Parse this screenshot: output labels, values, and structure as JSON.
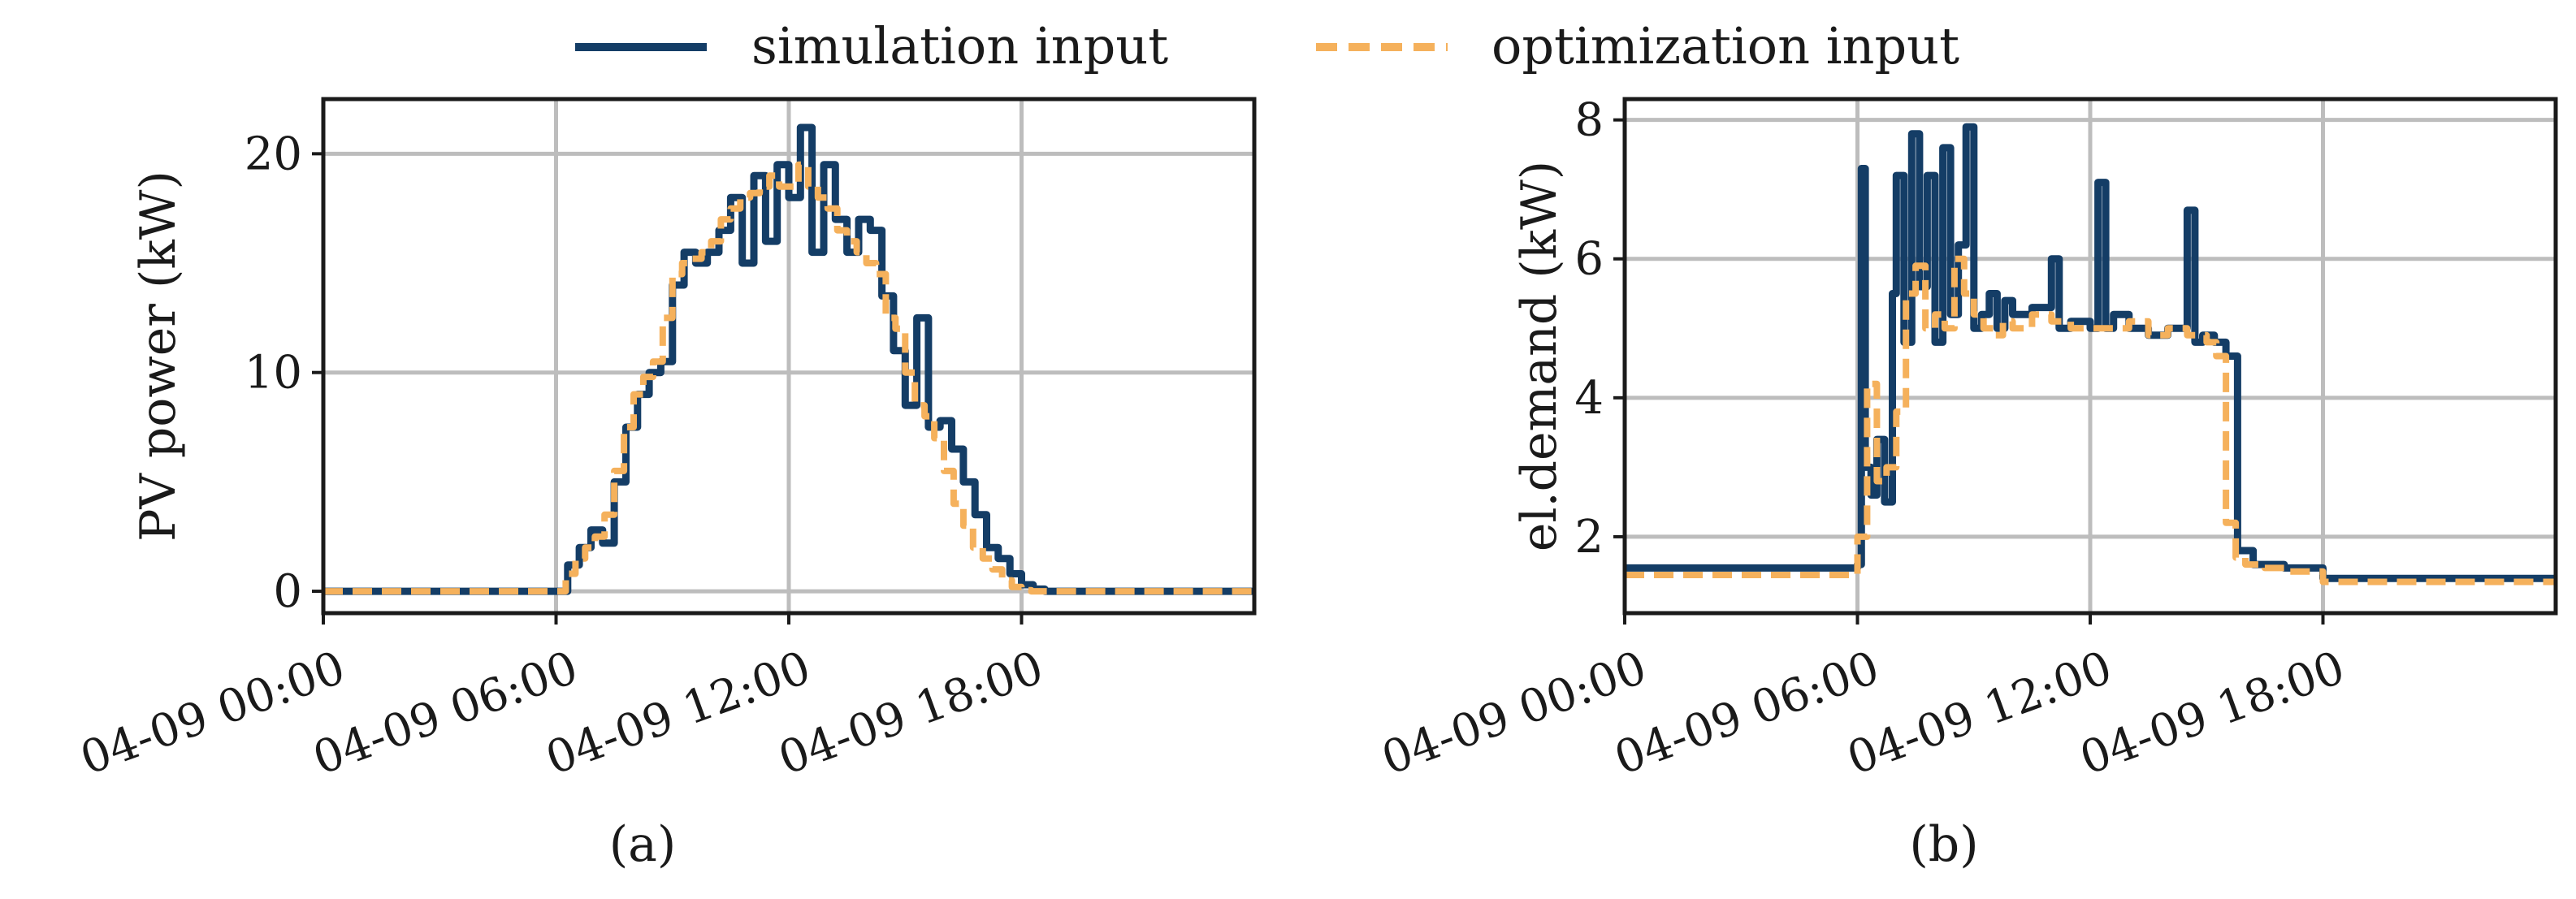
{
  "legend": {
    "simulation_label": "simulation input",
    "optimization_label": "optimization input"
  },
  "colors": {
    "simulation": "#143d66",
    "optimization": "#f5b15c"
  },
  "chart_data": [
    {
      "type": "line",
      "panel_label": "(a)",
      "xlabel": "",
      "ylabel": "PV power (kW)",
      "x_unit": "hours since 04-09 00:00",
      "xlim": [
        0,
        24
      ],
      "ylim": [
        -1,
        22.5
      ],
      "xticks": [
        0,
        6,
        12,
        18
      ],
      "xtick_labels": [
        "04-09 00:00",
        "04-09 06:00",
        "04-09 12:00",
        "04-09 18:00"
      ],
      "yticks": [
        0,
        10,
        20
      ],
      "ytick_labels": [
        "0",
        "10",
        "20"
      ],
      "grid": true,
      "series": [
        {
          "name": "simulation input",
          "x": [
            0,
            6,
            6.3,
            6.6,
            6.9,
            7.2,
            7.5,
            7.8,
            8.1,
            8.4,
            8.7,
            9.0,
            9.3,
            9.6,
            9.9,
            10.2,
            10.5,
            10.8,
            11.1,
            11.4,
            11.7,
            12.0,
            12.3,
            12.6,
            12.9,
            13.2,
            13.5,
            13.8,
            14.1,
            14.4,
            14.7,
            15.0,
            15.3,
            15.6,
            15.9,
            16.2,
            16.5,
            16.8,
            17.1,
            17.4,
            17.7,
            18.0,
            18.3,
            18.6,
            18.9,
            24
          ],
          "values": [
            0,
            0,
            1.2,
            2.0,
            2.8,
            2.2,
            5.0,
            7.5,
            9.0,
            10.0,
            10.5,
            14.0,
            15.5,
            15.0,
            15.5,
            16.5,
            18.0,
            15.0,
            19.0,
            16.0,
            19.5,
            18.0,
            21.2,
            15.5,
            19.5,
            17.0,
            15.5,
            17.0,
            16.5,
            13.5,
            11.0,
            8.5,
            12.5,
            7.5,
            7.8,
            6.5,
            5.0,
            3.5,
            2.0,
            1.5,
            0.8,
            0.3,
            0.1,
            0,
            0,
            0
          ]
        },
        {
          "name": "optimization input",
          "x": [
            0,
            6,
            6.25,
            6.5,
            6.75,
            7.0,
            7.25,
            7.5,
            7.75,
            8.0,
            8.25,
            8.5,
            8.75,
            9.0,
            9.25,
            9.5,
            9.75,
            10.0,
            10.25,
            10.5,
            10.75,
            11.0,
            11.25,
            11.5,
            11.75,
            12.0,
            12.25,
            12.5,
            12.75,
            13.0,
            13.25,
            13.5,
            13.75,
            14.0,
            14.25,
            14.5,
            14.75,
            15.0,
            15.25,
            15.5,
            15.75,
            16.0,
            16.25,
            16.5,
            16.75,
            17.0,
            17.25,
            17.5,
            17.75,
            18.0,
            18.25,
            18.5,
            24
          ],
          "values": [
            0,
            0,
            0.8,
            1.5,
            2.0,
            2.5,
            3.5,
            5.5,
            7.5,
            9.0,
            9.8,
            10.5,
            12.5,
            14.5,
            15.0,
            15.2,
            15.5,
            16.0,
            17.0,
            17.5,
            18.0,
            18.2,
            18.5,
            19.0,
            18.5,
            18.5,
            19.5,
            18.5,
            18.0,
            17.5,
            16.5,
            16.0,
            15.5,
            15.0,
            14.5,
            12.5,
            12.0,
            10.0,
            8.5,
            8.0,
            7.0,
            5.5,
            4.0,
            3.0,
            2.0,
            1.5,
            1.0,
            0.5,
            0.2,
            0.05,
            0,
            0,
            0
          ]
        }
      ]
    },
    {
      "type": "line",
      "panel_label": "(b)",
      "xlabel": "",
      "ylabel": "el.demand (kW)",
      "x_unit": "hours since 04-09 00:00",
      "xlim": [
        0,
        24
      ],
      "ylim": [
        0.9,
        8.3
      ],
      "xticks": [
        0,
        6,
        12,
        18
      ],
      "xtick_labels": [
        "04-09 00:00",
        "04-09 06:00",
        "04-09 12:00",
        "04-09 18:00"
      ],
      "yticks": [
        2,
        4,
        6,
        8
      ],
      "ytick_labels": [
        "2",
        "4",
        "6",
        "8"
      ],
      "grid": true,
      "series": [
        {
          "name": "simulation input",
          "x": [
            0,
            5.8,
            6.0,
            6.1,
            6.2,
            6.35,
            6.5,
            6.7,
            6.9,
            7.0,
            7.2,
            7.4,
            7.6,
            7.8,
            8.0,
            8.2,
            8.4,
            8.6,
            8.8,
            9.0,
            9.2,
            9.4,
            9.6,
            9.8,
            10.0,
            10.5,
            11.0,
            11.2,
            11.5,
            12.0,
            12.2,
            12.4,
            12.6,
            13.0,
            13.5,
            14.0,
            14.5,
            14.7,
            14.9,
            15.2,
            15.5,
            15.8,
            16.2,
            17.0,
            18.0,
            24
          ],
          "values": [
            1.55,
            1.55,
            1.6,
            7.3,
            3.0,
            2.6,
            3.4,
            2.5,
            5.5,
            7.2,
            4.8,
            7.8,
            5.6,
            7.2,
            4.8,
            7.6,
            5.2,
            6.2,
            7.9,
            5.0,
            5.2,
            5.5,
            5.0,
            5.4,
            5.2,
            5.3,
            6.0,
            5.0,
            5.1,
            5.0,
            7.1,
            5.0,
            5.2,
            5.0,
            4.9,
            5.0,
            6.7,
            4.8,
            4.9,
            4.8,
            4.6,
            1.8,
            1.6,
            1.55,
            1.4,
            1.4
          ]
        },
        {
          "name": "optimization input",
          "x": [
            0,
            5.75,
            6.0,
            6.25,
            6.5,
            6.75,
            7.0,
            7.25,
            7.5,
            7.75,
            8.0,
            8.25,
            8.5,
            8.75,
            9.0,
            9.25,
            9.5,
            9.75,
            10.0,
            10.5,
            11.0,
            11.5,
            12.0,
            12.5,
            13.0,
            13.5,
            14.0,
            14.5,
            15.0,
            15.25,
            15.5,
            15.75,
            16.0,
            16.5,
            17.0,
            18.0,
            24
          ],
          "values": [
            1.45,
            1.45,
            2.0,
            4.2,
            2.8,
            3.0,
            3.8,
            5.5,
            5.9,
            5.0,
            5.2,
            5.0,
            6.0,
            5.5,
            5.2,
            5.0,
            4.9,
            5.1,
            5.0,
            5.2,
            5.1,
            5.0,
            5.0,
            5.0,
            5.1,
            4.9,
            5.0,
            4.9,
            4.8,
            4.6,
            2.2,
            1.7,
            1.6,
            1.55,
            1.5,
            1.35,
            1.35
          ]
        }
      ]
    }
  ]
}
